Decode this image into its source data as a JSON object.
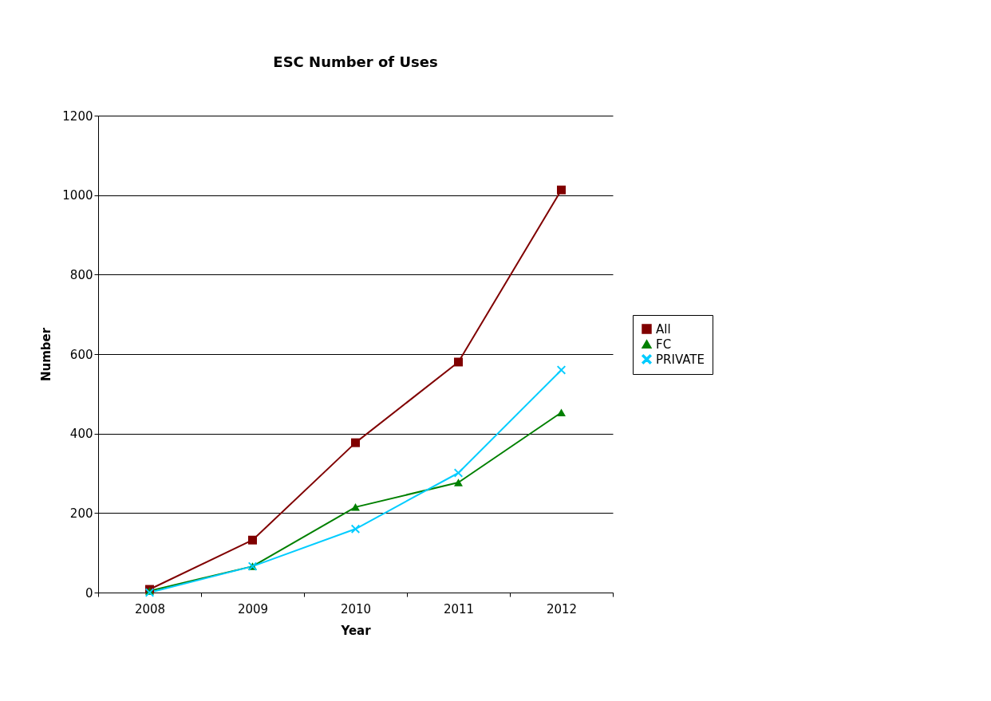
{
  "chart_data": {
    "type": "line",
    "title": "ESC Number of Uses",
    "xlabel": "Year",
    "ylabel": "Number",
    "categories": [
      "2008",
      "2009",
      "2010",
      "2011",
      "2012"
    ],
    "series": [
      {
        "name": "All",
        "color": "#800000",
        "marker": "square",
        "values": [
          8,
          132,
          377,
          580,
          1013
        ]
      },
      {
        "name": "FC",
        "color": "#008000",
        "marker": "triangle",
        "values": [
          4,
          66,
          215,
          277,
          453
        ]
      },
      {
        "name": "PRIVATE",
        "color": "#00ccff",
        "marker": "cross",
        "values": [
          0,
          66,
          160,
          301,
          560
        ]
      }
    ],
    "ylim": [
      0,
      1200
    ],
    "yticks": [
      0,
      200,
      400,
      600,
      800,
      1000,
      1200
    ],
    "grid": "y",
    "legend": "right",
    "line_style": "solid"
  }
}
